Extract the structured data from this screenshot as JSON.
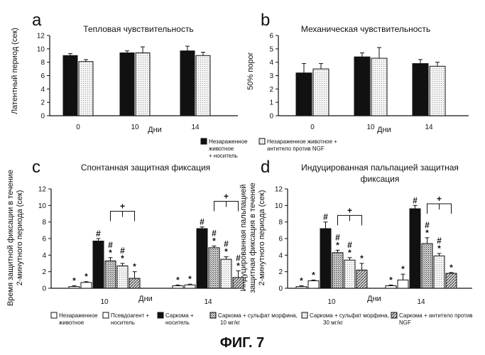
{
  "colors": {
    "black": "#111111",
    "white": "#ffffff",
    "light": "#e9e9e9",
    "grey": "#bdbdbd",
    "mid": "#8f8f8f"
  },
  "figure": {
    "caption": "ФИГ. 7",
    "days_label": "Дни"
  },
  "chart_data": [
    {
      "id": "a",
      "type": "bar",
      "panel": "a",
      "title": "Тепловая чувствительность",
      "xlabel": "Дни",
      "ylabel": "Латентный период (сек)",
      "ylim": [
        0,
        12
      ],
      "yticks": [
        "0",
        "2",
        "4",
        "6",
        "8",
        "10",
        "12"
      ],
      "categories": [
        "0",
        "10",
        "14"
      ],
      "series": [
        {
          "name": "Незараженное животное + носитель",
          "fill": "black",
          "values": [
            9.0,
            9.4,
            9.7
          ],
          "errors": [
            0.3,
            0.3,
            0.7
          ]
        },
        {
          "name": "Незараженное животное + антитело против NGF",
          "fill": "light",
          "values": [
            8.1,
            9.4,
            9.0
          ],
          "errors": [
            0.3,
            0.9,
            0.5
          ]
        }
      ]
    },
    {
      "id": "b",
      "type": "bar",
      "panel": "b",
      "title": "Механическая чувствительность",
      "xlabel": "Дни",
      "ylabel": "50% порог",
      "ylim": [
        0,
        6
      ],
      "yticks": [
        "0",
        "1",
        "2",
        "3",
        "4",
        "5",
        "6"
      ],
      "categories": [
        "0",
        "10",
        "14"
      ],
      "series": [
        {
          "name": "Незараженное животное + носитель",
          "fill": "black",
          "values": [
            3.2,
            4.4,
            3.9
          ],
          "errors": [
            0.7,
            0.3,
            0.3
          ]
        },
        {
          "name": "Незараженное животное + антитело против NGF",
          "fill": "light",
          "values": [
            3.5,
            4.3,
            3.7
          ],
          "errors": [
            0.4,
            0.8,
            0.3
          ]
        }
      ]
    },
    {
      "id": "c",
      "type": "bar",
      "panel": "c",
      "title": "Спонтанная защитная фиксация",
      "xlabel": "Дни",
      "ylabel_lines": [
        "Время защитной фиксации в течение",
        "2-минутного периода (сек)"
      ],
      "ylim": [
        0,
        12
      ],
      "yticks": [
        "0",
        "2",
        "4",
        "6",
        "8",
        "10",
        "12"
      ],
      "categories": [
        "10",
        "14"
      ],
      "series": [
        {
          "name": "Незараженное животное",
          "fill": "white",
          "values": [
            0.2,
            0.3
          ],
          "errors": [
            0.1,
            0.1
          ],
          "marks": [
            "*",
            "*"
          ]
        },
        {
          "name": "Псевдоагент + носитель",
          "fill": "white",
          "values": [
            0.7,
            0.4
          ],
          "errors": [
            0.1,
            0.1
          ],
          "marks": [
            "*",
            "*"
          ]
        },
        {
          "name": "Саркома + носитель",
          "fill": "black",
          "values": [
            5.7,
            7.2
          ],
          "errors": [
            0.3,
            0.2
          ],
          "marks": [
            "#",
            "#"
          ]
        },
        {
          "name": "Саркома + сульфат морфина, 10 мг/кг",
          "fill": "grey",
          "values": [
            3.3,
            4.9
          ],
          "errors": [
            0.4,
            0.2
          ],
          "marks": [
            "#*",
            "#*"
          ]
        },
        {
          "name": "Саркома + сульфат морфина, 30 мг/кг",
          "fill": "light",
          "values": [
            2.7,
            3.5
          ],
          "errors": [
            0.3,
            0.3
          ],
          "marks": [
            "#*",
            "#*"
          ]
        },
        {
          "name": "Саркома + антитело против NGF",
          "fill": "mid",
          "values": [
            1.2,
            1.3
          ],
          "errors": [
            0.8,
            0.8
          ],
          "marks": [
            "*",
            "#*"
          ]
        }
      ],
      "plus_brackets": [
        {
          "category": "10",
          "from": 3,
          "to": 5,
          "y": 9.3
        },
        {
          "category": "14",
          "from": 3,
          "to": 5,
          "y": 10.5
        }
      ]
    },
    {
      "id": "d",
      "type": "bar",
      "panel": "d",
      "title_lines": [
        "Индуцированная пальпацией защитная",
        "фиксация"
      ],
      "xlabel": "Дни",
      "ylabel_lines": [
        "Индуцированная пальпацией",
        "защитная фиксация в течение",
        "2-минутного периода (сек)"
      ],
      "ylim": [
        0,
        12
      ],
      "yticks": [
        "0",
        "2",
        "4",
        "6",
        "8",
        "10",
        "12"
      ],
      "categories": [
        "10",
        "14"
      ],
      "series": [
        {
          "name": "Незараженное животное",
          "fill": "white",
          "values": [
            0.2,
            0.3
          ],
          "errors": [
            0.1,
            0.1
          ],
          "marks": [
            "*",
            "*"
          ]
        },
        {
          "name": "Псевдоагент + носитель",
          "fill": "white",
          "values": [
            0.9,
            1.0
          ],
          "errors": [
            0.1,
            0.7
          ],
          "marks": [
            "*",
            "*"
          ]
        },
        {
          "name": "Саркома + носитель",
          "fill": "black",
          "values": [
            7.2,
            9.6
          ],
          "errors": [
            0.8,
            0.4
          ],
          "marks": [
            "#",
            "#"
          ]
        },
        {
          "name": "Саркома + сульфат морфина, 10 мг/кг",
          "fill": "grey",
          "values": [
            4.3,
            5.4
          ],
          "errors": [
            0.3,
            0.7
          ],
          "marks": [
            "#*",
            "#*"
          ]
        },
        {
          "name": "Саркома + сульфат морфина, 30 мг/кг",
          "fill": "light",
          "values": [
            3.4,
            3.9
          ],
          "errors": [
            0.3,
            0.3
          ],
          "marks": [
            "#*",
            "#*"
          ]
        },
        {
          "name": "Саркома + антитело против NGF",
          "fill": "mid",
          "values": [
            2.2,
            1.8
          ],
          "errors": [
            0.8,
            0.1
          ],
          "marks": [
            "*",
            "*"
          ]
        }
      ],
      "plus_brackets": [
        {
          "category": "10",
          "from": 3,
          "to": 5,
          "y": 8.8
        },
        {
          "category": "14",
          "from": 3,
          "to": 5,
          "y": 10.2
        }
      ]
    }
  ],
  "legend_top": [
    {
      "fill": "black",
      "lines": [
        "Незараженное",
        "животное",
        "+ носитель"
      ]
    },
    {
      "fill": "light",
      "lines": [
        "Незараженное животное +",
        "антитело против NGF"
      ]
    }
  ],
  "legend_bottom": [
    {
      "fill": "white",
      "lines": [
        "Незараженное",
        "животное"
      ]
    },
    {
      "fill": "white",
      "lines": [
        "Псевдоагент +",
        "носитель"
      ]
    },
    {
      "fill": "black",
      "lines": [
        "Саркома +",
        "носитель"
      ]
    },
    {
      "fill": "grey",
      "lines": [
        "Саркома + сульфат морфина,",
        "10 мг/кг"
      ]
    },
    {
      "fill": "light",
      "lines": [
        "Саркома + сульфат морфина,",
        "30 мг/кг"
      ]
    },
    {
      "fill": "mid",
      "lines": [
        "Саркома + антитело против",
        "NGF"
      ]
    }
  ]
}
